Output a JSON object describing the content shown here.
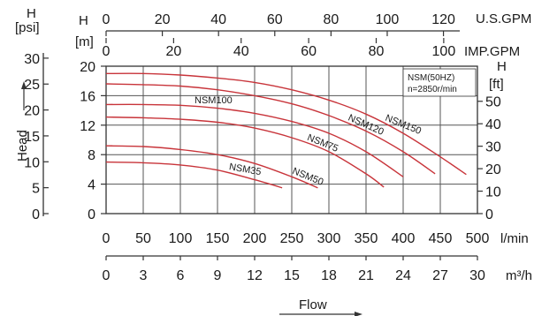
{
  "chart_data": {
    "type": "line",
    "xlabel": "Flow",
    "ylabel": "Head",
    "grid": true,
    "legend": {
      "position": "top-right",
      "lines": [
        "NSM(50HZ)",
        "n=2850r/min"
      ]
    },
    "x_lmin": {
      "unit": "l/min",
      "ticks": [
        0,
        50,
        100,
        150,
        200,
        250,
        300,
        350,
        400,
        450,
        500
      ],
      "range": [
        0,
        500
      ]
    },
    "x_m3h": {
      "unit": "m³/h",
      "ticks": [
        0,
        3,
        6,
        9,
        12,
        15,
        18,
        21,
        24,
        27,
        30
      ],
      "range": [
        0,
        30
      ]
    },
    "x_usgpm": {
      "unit": "U.S.GPM",
      "ticks": [
        0,
        20,
        40,
        60,
        80,
        100,
        120
      ]
    },
    "x_impgpm": {
      "unit": "IMP.GPM",
      "ticks": [
        0,
        20,
        40,
        60,
        80,
        100
      ]
    },
    "y_m": {
      "header": "H",
      "unit": "[m]",
      "ticks": [
        0,
        4,
        8,
        12,
        16,
        20
      ],
      "range": [
        0,
        20
      ]
    },
    "y_psi": {
      "header": "H",
      "unit": "[psi]",
      "ticks": [
        0,
        5,
        10,
        15,
        20,
        25,
        30
      ]
    },
    "y_ft": {
      "header": "H",
      "unit": "[ft]",
      "ticks": [
        0,
        10,
        20,
        30,
        40,
        50
      ]
    },
    "series": [
      {
        "name": "NSM35",
        "color": "#c8343a",
        "x": [
          0,
          50,
          100,
          150,
          200,
          237
        ],
        "y": [
          7.0,
          6.9,
          6.6,
          5.9,
          4.6,
          3.5
        ]
      },
      {
        "name": "NSM50",
        "color": "#c8343a",
        "x": [
          0,
          50,
          100,
          150,
          200,
          250,
          285
        ],
        "y": [
          9.2,
          9.1,
          8.7,
          8.0,
          6.8,
          5.0,
          3.5
        ]
      },
      {
        "name": "NSM75",
        "color": "#c8343a",
        "x": [
          0,
          50,
          100,
          150,
          200,
          250,
          300,
          350,
          374
        ],
        "y": [
          13.1,
          13.0,
          12.8,
          12.4,
          11.6,
          10.3,
          8.4,
          5.4,
          3.6
        ]
      },
      {
        "name": "NSM100",
        "color": "#c8343a",
        "x": [
          0,
          50,
          100,
          150,
          200,
          250,
          300,
          350,
          400
        ],
        "y": [
          14.8,
          14.8,
          14.7,
          14.3,
          13.6,
          12.5,
          10.9,
          8.4,
          5.0
        ]
      },
      {
        "name": "NSM120",
        "color": "#c8343a",
        "x": [
          0,
          50,
          100,
          150,
          200,
          250,
          300,
          350,
          400,
          443
        ],
        "y": [
          17.6,
          17.5,
          17.3,
          16.8,
          16.0,
          14.9,
          13.3,
          11.2,
          8.4,
          5.4
        ]
      },
      {
        "name": "NSM150",
        "color": "#c8343a",
        "x": [
          0,
          50,
          100,
          150,
          200,
          250,
          300,
          350,
          400,
          450,
          485
        ],
        "y": [
          19.0,
          19.0,
          18.8,
          18.4,
          17.8,
          16.8,
          15.4,
          13.5,
          10.9,
          7.7,
          5.3
        ]
      }
    ]
  }
}
